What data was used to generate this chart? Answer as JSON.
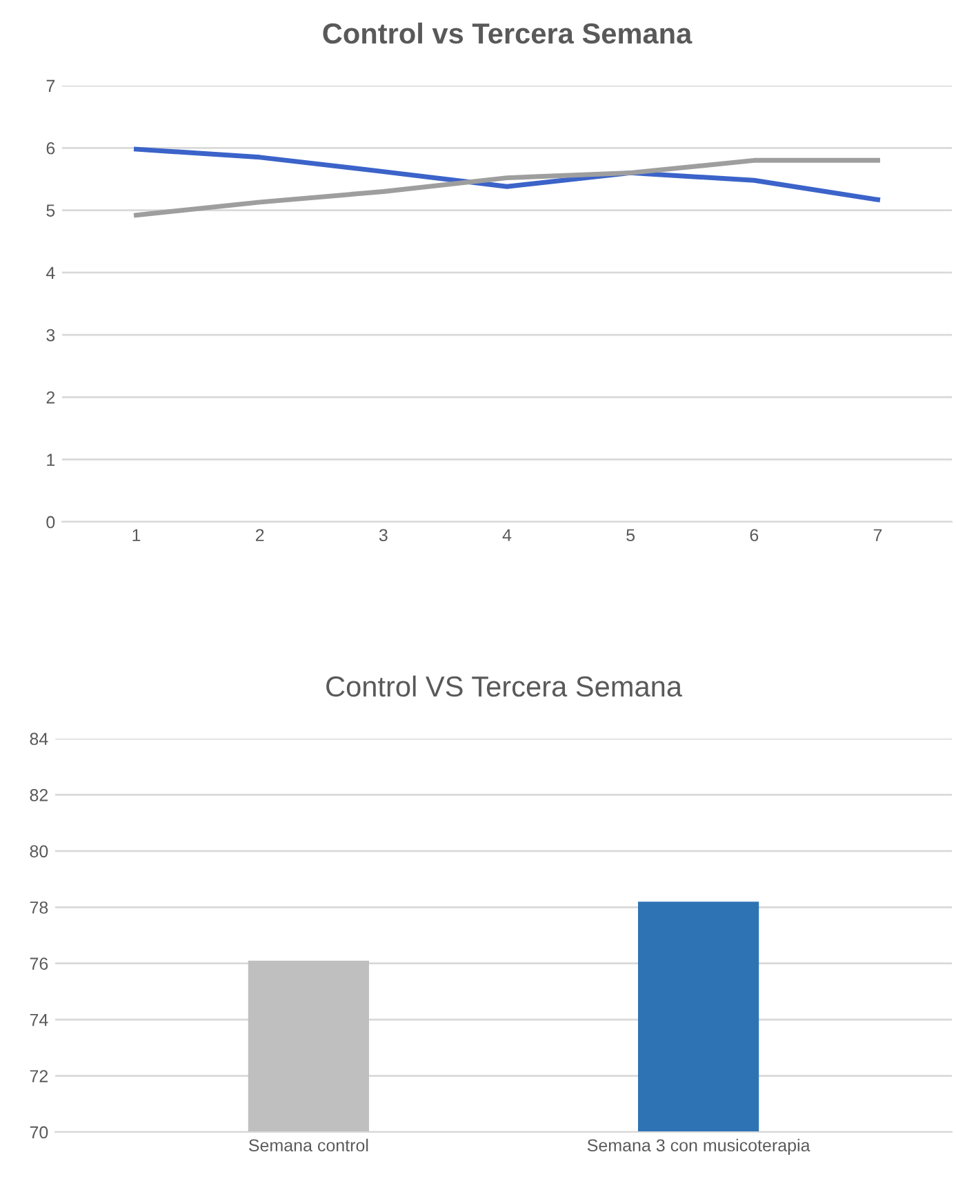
{
  "chart_data": [
    {
      "type": "line",
      "title": "Control vs Tercera Semana",
      "categories": [
        "1",
        "2",
        "3",
        "4",
        "5",
        "6",
        "7"
      ],
      "series": [
        {
          "color": "#3b63c9",
          "values": [
            5.98,
            5.85,
            5.62,
            5.38,
            5.6,
            5.48,
            5.17
          ]
        },
        {
          "color": "#9e9e9e",
          "values": [
            4.92,
            5.13,
            5.3,
            5.52,
            5.6,
            5.8,
            5.8
          ]
        }
      ],
      "ylim": [
        0,
        7
      ],
      "yticks": [
        0,
        1,
        2,
        3,
        4,
        5,
        6,
        7
      ],
      "grid": "y",
      "legend": false
    },
    {
      "type": "bar",
      "title": "Control VS Tercera Semana",
      "categories": [
        "Semana control",
        "Semana 3 con musicoterapia"
      ],
      "values": [
        76.1,
        78.2
      ],
      "colors": [
        "#bfbfbf",
        "#2e74b5"
      ],
      "ylim": [
        70,
        84
      ],
      "yticks": [
        70,
        72,
        74,
        76,
        78,
        80,
        82,
        84
      ],
      "grid": "y",
      "legend": false
    }
  ]
}
